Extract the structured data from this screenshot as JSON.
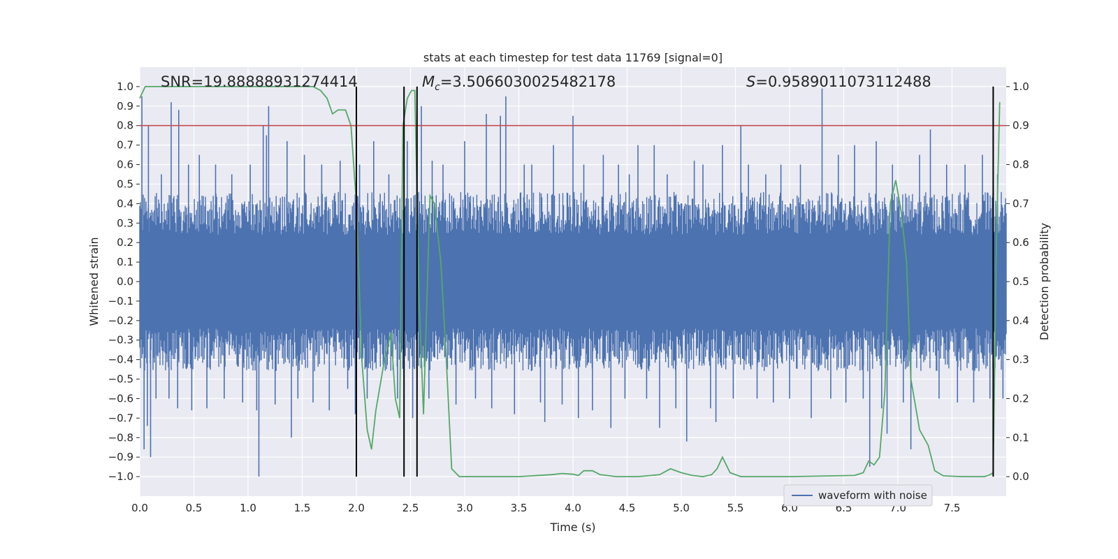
{
  "chart_data": {
    "type": "line",
    "title": "stats at each timestep for test data 11769 [signal=0]",
    "xlabel": "Time (s)",
    "ylabel": "Whitened strain",
    "y2label": "Detection probability",
    "xlim": [
      0.0,
      8.0
    ],
    "ylim": [
      -1.1,
      1.1
    ],
    "y2lim": [
      -0.05,
      1.05
    ],
    "xticks": [
      0.0,
      0.5,
      1.0,
      1.5,
      2.0,
      2.5,
      3.0,
      3.5,
      4.0,
      4.5,
      5.0,
      5.5,
      6.0,
      6.5,
      7.0,
      7.5
    ],
    "xtick_labels": [
      "0.0",
      "0.5",
      "1.0",
      "1.5",
      "2.0",
      "2.5",
      "3.0",
      "3.5",
      "4.0",
      "4.5",
      "5.0",
      "5.5",
      "6.0",
      "6.5",
      "7.0",
      "7.5"
    ],
    "yticks": [
      1.0,
      0.9,
      0.8,
      0.7,
      0.6,
      0.5,
      0.4,
      0.3,
      0.2,
      0.1,
      0.0,
      -0.1,
      -0.2,
      -0.3,
      -0.4,
      -0.5,
      -0.6,
      -0.7,
      -0.8,
      -0.9,
      -1.0
    ],
    "ytick_labels": [
      "1.0",
      "0.9",
      "0.8",
      "0.7",
      "0.6",
      "0.5",
      "0.4",
      "0.3",
      "0.2",
      "0.1",
      "0.0",
      "−0.1",
      "−0.2",
      "−0.3",
      "−0.4",
      "−0.5",
      "−0.6",
      "−0.7",
      "−0.8",
      "−0.9",
      "−1.0"
    ],
    "y2ticks": [
      1.0,
      0.9,
      0.8,
      0.7,
      0.6,
      0.5,
      0.4,
      0.3,
      0.2,
      0.1,
      0.0
    ],
    "y2tick_labels": [
      "1.0",
      "0.9",
      "0.8",
      "0.7",
      "0.6",
      "0.5",
      "0.4",
      "0.3",
      "0.2",
      "0.1",
      "0.0"
    ],
    "grid": true,
    "legend_position": "bottom-right",
    "annotations": [
      {
        "label": "SNR",
        "text": "=19.88888931274414",
        "x": 0.2
      },
      {
        "label": "M_c",
        "text": "=3.5066030025482178",
        "x": 2.61
      },
      {
        "label": "S",
        "text": "=0.9589011073112488",
        "x": 5.6
      }
    ],
    "threshold": {
      "axis": "y2",
      "value": 0.9,
      "color": "#c44e52"
    },
    "vertical_lines": [
      2.0,
      2.44,
      2.56,
      7.88
    ],
    "series": [
      {
        "name": "waveform with noise",
        "axis": "y",
        "color": "#4c72b0",
        "band": [
          -0.4,
          0.4
        ],
        "spikes": [
          [
            0.02,
            0.95
          ],
          [
            0.04,
            -0.86
          ],
          [
            0.07,
            -0.74
          ],
          [
            0.08,
            0.8
          ],
          [
            0.1,
            -0.9
          ],
          [
            0.15,
            -0.6
          ],
          [
            0.2,
            0.55
          ],
          [
            0.27,
            -0.6
          ],
          [
            0.29,
            0.92
          ],
          [
            0.35,
            -0.65
          ],
          [
            0.36,
            0.88
          ],
          [
            0.45,
            0.6
          ],
          [
            0.48,
            -0.66
          ],
          [
            0.55,
            0.65
          ],
          [
            0.62,
            -0.65
          ],
          [
            0.7,
            0.6
          ],
          [
            0.78,
            -0.6
          ],
          [
            0.85,
            0.55
          ],
          [
            0.95,
            -0.62
          ],
          [
            1.02,
            0.6
          ],
          [
            1.08,
            -0.66
          ],
          [
            1.1,
            -1.0
          ],
          [
            1.14,
            0.8
          ],
          [
            1.17,
            0.75
          ],
          [
            1.19,
            0.9
          ],
          [
            1.25,
            -0.63
          ],
          [
            1.36,
            0.72
          ],
          [
            1.4,
            -0.8
          ],
          [
            1.46,
            -0.6
          ],
          [
            1.52,
            0.65
          ],
          [
            1.6,
            -0.62
          ],
          [
            1.68,
            0.6
          ],
          [
            1.75,
            -0.66
          ],
          [
            1.85,
            0.62
          ],
          [
            1.92,
            -0.55
          ],
          [
            1.99,
            -0.68
          ],
          [
            2.03,
            0.6
          ],
          [
            2.1,
            -0.6
          ],
          [
            2.16,
            0.72
          ],
          [
            2.22,
            0.45
          ],
          [
            2.3,
            0.55
          ],
          [
            2.38,
            -0.6
          ],
          [
            2.47,
            0.72
          ],
          [
            2.52,
            -0.7
          ],
          [
            2.6,
            0.9
          ],
          [
            2.67,
            -0.6
          ],
          [
            2.7,
            0.62
          ],
          [
            2.8,
            0.6
          ],
          [
            2.92,
            -0.63
          ],
          [
            3.0,
            0.72
          ],
          [
            3.1,
            -0.6
          ],
          [
            3.2,
            0.86
          ],
          [
            3.25,
            -0.65
          ],
          [
            3.33,
            0.85
          ],
          [
            3.38,
            0.95
          ],
          [
            3.46,
            -0.68
          ],
          [
            3.55,
            0.6
          ],
          [
            3.62,
            0.6
          ],
          [
            3.7,
            -0.62
          ],
          [
            3.74,
            -0.72
          ],
          [
            3.82,
            0.7
          ],
          [
            3.9,
            -0.63
          ],
          [
            4.0,
            0.85
          ],
          [
            4.05,
            -0.7
          ],
          [
            4.1,
            0.6
          ],
          [
            4.18,
            -0.66
          ],
          [
            4.28,
            0.65
          ],
          [
            4.35,
            -0.75
          ],
          [
            4.42,
            0.6
          ],
          [
            4.48,
            -0.6
          ],
          [
            4.52,
            0.55
          ],
          [
            4.6,
            0.7
          ],
          [
            4.68,
            -0.6
          ],
          [
            4.75,
            0.7
          ],
          [
            4.8,
            -0.75
          ],
          [
            4.87,
            0.55
          ],
          [
            4.95,
            -0.65
          ],
          [
            5.05,
            -0.82
          ],
          [
            5.12,
            0.62
          ],
          [
            5.2,
            0.6
          ],
          [
            5.27,
            -0.65
          ],
          [
            5.32,
            -0.72
          ],
          [
            5.38,
            0.7
          ],
          [
            5.48,
            -0.6
          ],
          [
            5.55,
            0.8
          ],
          [
            5.62,
            0.6
          ],
          [
            5.7,
            -0.6
          ],
          [
            5.78,
            0.55
          ],
          [
            5.85,
            -0.62
          ],
          [
            5.92,
            0.6
          ],
          [
            6.0,
            -0.6
          ],
          [
            6.1,
            0.6
          ],
          [
            6.2,
            -0.7
          ],
          [
            6.3,
            0.99
          ],
          [
            6.38,
            -0.6
          ],
          [
            6.45,
            0.65
          ],
          [
            6.52,
            -0.62
          ],
          [
            6.6,
            0.7
          ],
          [
            6.68,
            -0.6
          ],
          [
            6.74,
            -0.95
          ],
          [
            6.8,
            0.72
          ],
          [
            6.85,
            -0.65
          ],
          [
            6.9,
            -0.78
          ],
          [
            6.95,
            0.6
          ],
          [
            7.05,
            -0.62
          ],
          [
            7.12,
            -0.86
          ],
          [
            7.2,
            0.65
          ],
          [
            7.3,
            0.78
          ],
          [
            7.38,
            -0.6
          ],
          [
            7.45,
            0.6
          ],
          [
            7.55,
            -0.62
          ],
          [
            7.62,
            0.6
          ],
          [
            7.7,
            -0.62
          ],
          [
            7.78,
            0.65
          ],
          [
            7.85,
            -0.6
          ],
          [
            7.92,
            0.55
          ],
          [
            7.97,
            -0.6
          ]
        ]
      },
      {
        "name": "detection probability",
        "axis": "y2",
        "color": "#55a868",
        "x": [
          0.0,
          0.05,
          0.5,
          1.0,
          1.6,
          1.67,
          1.73,
          1.78,
          1.83,
          1.9,
          1.95,
          2.0,
          2.05,
          2.1,
          2.14,
          2.18,
          2.26,
          2.32,
          2.36,
          2.4,
          2.43,
          2.47,
          2.51,
          2.54,
          2.58,
          2.62,
          2.68,
          2.72,
          2.78,
          2.83,
          2.88,
          2.95,
          3.1,
          3.5,
          3.8,
          3.9,
          4.0,
          4.05,
          4.1,
          4.18,
          4.25,
          4.4,
          4.6,
          4.8,
          4.9,
          5.0,
          5.1,
          5.2,
          5.28,
          5.33,
          5.38,
          5.45,
          5.55,
          6.0,
          6.4,
          6.6,
          6.68,
          6.73,
          6.78,
          6.83,
          6.88,
          6.93,
          6.98,
          7.03,
          7.08,
          7.12,
          7.2,
          7.28,
          7.34,
          7.42,
          7.6,
          7.8,
          7.85,
          7.88,
          7.91,
          7.94
        ],
        "y": [
          0.97,
          1.0,
          1.0,
          1.0,
          1.0,
          0.99,
          0.97,
          0.93,
          0.94,
          0.94,
          0.9,
          0.7,
          0.3,
          0.12,
          0.07,
          0.17,
          0.3,
          0.37,
          0.2,
          0.15,
          0.9,
          0.97,
          0.99,
          0.99,
          0.45,
          0.16,
          0.72,
          0.7,
          0.55,
          0.3,
          0.02,
          0.0,
          0.0,
          0.0,
          0.005,
          0.008,
          0.006,
          0.003,
          0.015,
          0.015,
          0.005,
          0.0,
          0.0,
          0.005,
          0.02,
          0.01,
          0.003,
          0.0,
          0.005,
          0.02,
          0.05,
          0.01,
          0.0,
          0.0,
          0.002,
          0.003,
          0.01,
          0.04,
          0.03,
          0.05,
          0.22,
          0.7,
          0.76,
          0.68,
          0.55,
          0.25,
          0.12,
          0.08,
          0.015,
          0.002,
          0.0,
          0.0,
          0.005,
          0.01,
          0.6,
          0.96
        ]
      }
    ]
  }
}
